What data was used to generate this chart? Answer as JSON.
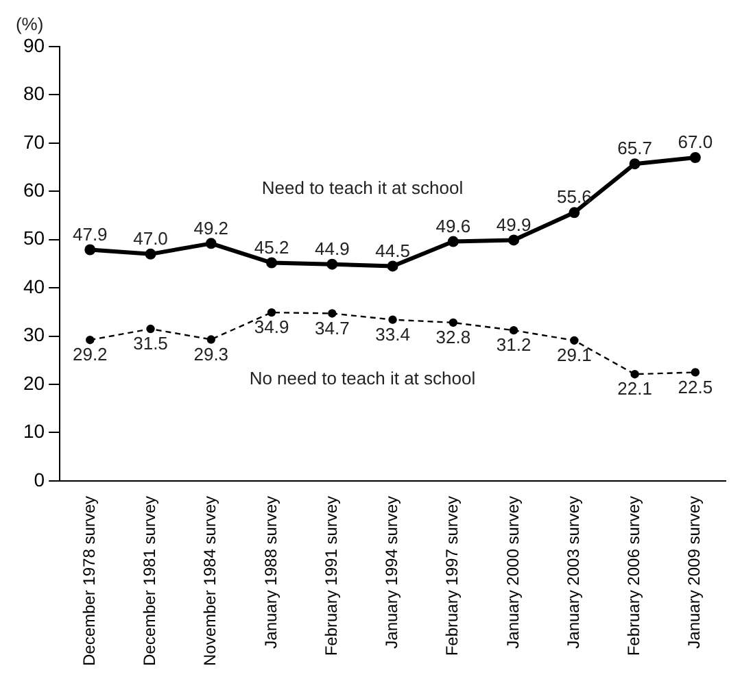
{
  "chart_data": {
    "type": "line",
    "ylabel": "(%)",
    "categories": [
      "December 1978 survey",
      "December 1981 survey",
      "November 1984 survey",
      "January 1988 survey",
      "February 1991 survey",
      "January 1994 survey",
      "February 1997 survey",
      "January 2000 survey",
      "January 2003 survey",
      "February 2006 survey",
      "January 2009 survey"
    ],
    "series": [
      {
        "name": "Need to teach it at school",
        "color": "#000000",
        "line_style": "solid",
        "values": [
          47.9,
          47.0,
          49.2,
          45.2,
          44.9,
          44.5,
          49.6,
          49.9,
          55.6,
          65.7,
          67.0
        ],
        "value_labels": [
          "47.9",
          "47.0",
          "49.2",
          "45.2",
          "44.9",
          "44.5",
          "49.6",
          "49.9",
          "55.6",
          "65.7",
          "67.0"
        ]
      },
      {
        "name": "No need to teach it at school",
        "color": "#000000",
        "line_style": "dashed",
        "values": [
          29.2,
          31.5,
          29.3,
          34.9,
          34.7,
          33.4,
          32.8,
          31.2,
          29.1,
          22.1,
          22.5
        ],
        "value_labels": [
          "29.2",
          "31.5",
          "29.3",
          "34.9",
          "34.7",
          "33.4",
          "32.8",
          "31.2",
          "29.1",
          "22.1",
          "22.5"
        ]
      }
    ],
    "ylim": [
      0,
      90
    ],
    "yticks": [
      0,
      10,
      20,
      30,
      40,
      50,
      60,
      70,
      80,
      90
    ],
    "grid": false,
    "legend": false,
    "marker": "circle"
  }
}
